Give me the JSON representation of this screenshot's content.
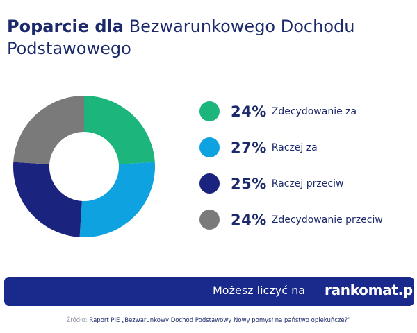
{
  "header": {
    "title_bold": "Poparcie dla",
    "title_rest": "Bezwarunkowego Dochodu Podstawowego"
  },
  "chart_data": {
    "type": "pie",
    "variant": "donut",
    "title": "Poparcie dla Bezwarunkowego Dochodu Podstawowego",
    "slices": [
      {
        "label": "Zdecydowanie za",
        "value": 24,
        "value_text": "24%",
        "color": "#1cb57c"
      },
      {
        "label": "Raczej za",
        "value": 27,
        "value_text": "27%",
        "color": "#0ea2e0"
      },
      {
        "label": "Raczej przeciw",
        "value": 25,
        "value_text": "25%",
        "color": "#1a237e"
      },
      {
        "label": "Zdecydowanie przeciw",
        "value": 24,
        "value_text": "24%",
        "color": "#7a7a7a"
      }
    ],
    "legend_position": "right"
  },
  "banner": {
    "text": "Możesz liczyć na",
    "brand": "rankomat.pl",
    "color": "#1a2a8c"
  },
  "footer": {
    "source_label": "Źródło:",
    "source_text": "Raport PIE „Bezwarunkowy Dochód Podstawowy Nowy pomysł na państwo opiekuńcze?”"
  }
}
